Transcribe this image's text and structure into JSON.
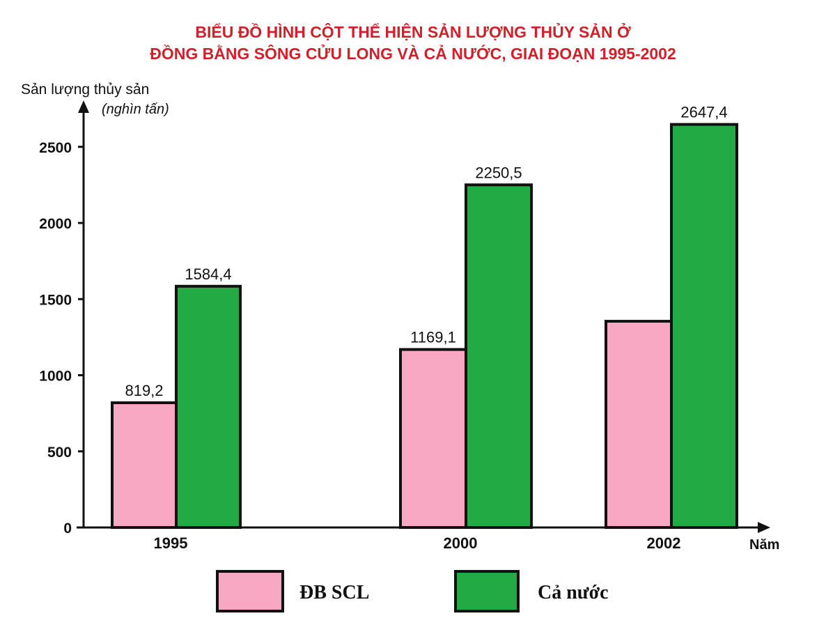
{
  "chart_data": {
    "type": "bar",
    "title_lines": [
      "BIỂU ĐỒ HÌNH CỘT THỂ HIỆN SẢN LƯỢNG THỦY SẢN Ở",
      "ĐỒNG BẰNG SÔNG CỬU LONG VÀ CẢ NƯỚC, GIAI ĐOẠN 1995-2002"
    ],
    "ylabel": "Sản lượng thủy sản",
    "yunit": "(nghìn tấn)",
    "xlabel": "Năm",
    "categories": [
      "1995",
      "2000",
      "2002"
    ],
    "yticks": [
      0,
      500,
      1000,
      1500,
      2000,
      2500
    ],
    "ylim": [
      0,
      2750
    ],
    "series": [
      {
        "name": "ĐB SCL",
        "values": [
          819.2,
          1169.1,
          1354.5
        ],
        "labels": [
          "819,2",
          "1169,1",
          ""
        ],
        "color": "#f9a8c4"
      },
      {
        "name": "Cả nước",
        "values": [
          1584.4,
          2250.5,
          2647.4
        ],
        "labels": [
          "1584,4",
          "2250,5",
          "2647,4"
        ],
        "color": "#22ab44"
      }
    ],
    "grid": false,
    "legend_position": "bottom"
  }
}
